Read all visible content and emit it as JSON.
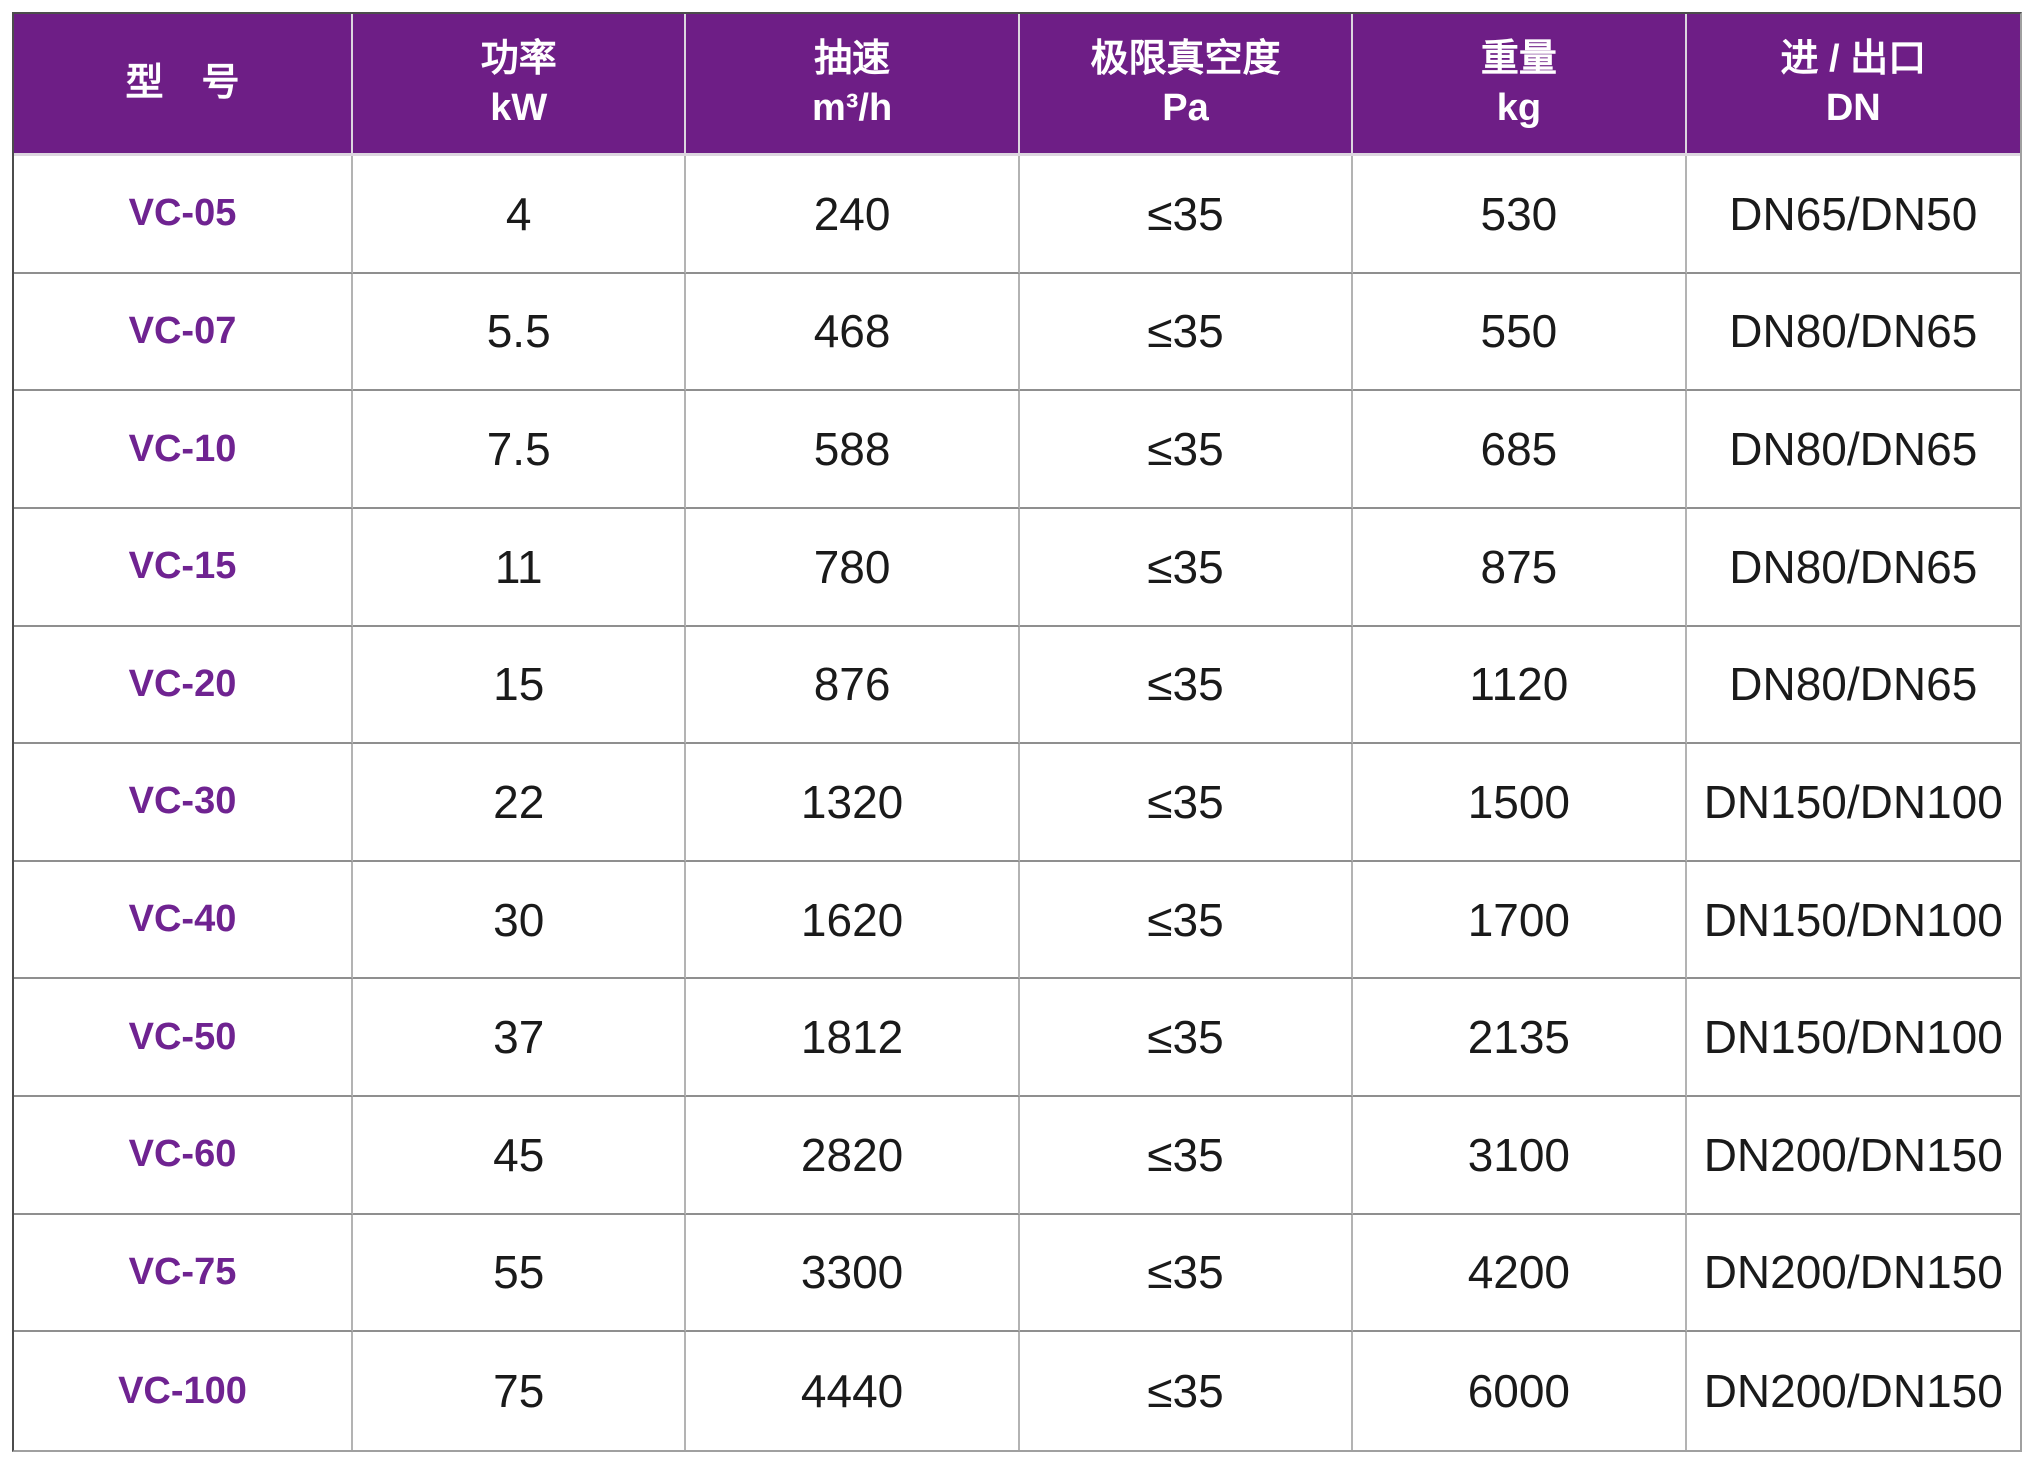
{
  "chart_data": {
    "type": "table",
    "columns": [
      {
        "title": "型　号",
        "unit": ""
      },
      {
        "title": "功率",
        "unit": "kW"
      },
      {
        "title": "抽速",
        "unit": "m³/h"
      },
      {
        "title": "极限真空度",
        "unit": "Pa"
      },
      {
        "title": "重量",
        "unit": "kg"
      },
      {
        "title": "进 / 出口",
        "unit": "DN"
      }
    ],
    "rows": [
      [
        "VC-05",
        "4",
        "240",
        "≤35",
        "530",
        "DN65/DN50"
      ],
      [
        "VC-07",
        "5.5",
        "468",
        "≤35",
        "550",
        "DN80/DN65"
      ],
      [
        "VC-10",
        "7.5",
        "588",
        "≤35",
        "685",
        "DN80/DN65"
      ],
      [
        "VC-15",
        "11",
        "780",
        "≤35",
        "875",
        "DN80/DN65"
      ],
      [
        "VC-20",
        "15",
        "876",
        "≤35",
        "1120",
        "DN80/DN65"
      ],
      [
        "VC-30",
        "22",
        "1320",
        "≤35",
        "1500",
        "DN150/DN100"
      ],
      [
        "VC-40",
        "30",
        "1620",
        "≤35",
        "1700",
        "DN150/DN100"
      ],
      [
        "VC-50",
        "37",
        "1812",
        "≤35",
        "2135",
        "DN150/DN100"
      ],
      [
        "VC-60",
        "45",
        "2820",
        "≤35",
        "3100",
        "DN200/DN150"
      ],
      [
        "VC-75",
        "55",
        "3300",
        "≤35",
        "4200",
        "DN200/DN150"
      ],
      [
        "VC-100",
        "75",
        "4440",
        "≤35",
        "6000",
        "DN200/DN150"
      ]
    ]
  },
  "colors": {
    "header_bg": "#6E1E86",
    "header_text": "#FFFFFF",
    "model_text": "#6F2391",
    "body_text": "#1A1A1A",
    "border_outer_dark": "#4C4C4C",
    "border_outer_light": "#A0A0A0",
    "row_line": "#8F8F8F",
    "col_line": "#B3B3B3",
    "header_line": "#DCD6DF"
  }
}
